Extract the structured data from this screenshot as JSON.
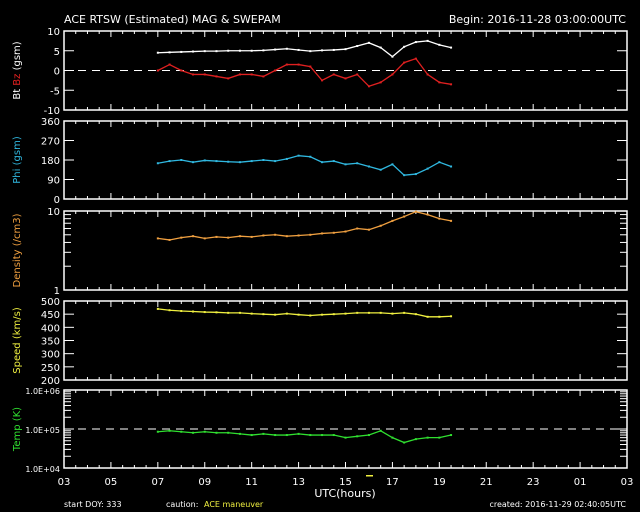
{
  "header": {
    "title": "ACE RTSW (Estimated) MAG & SWEPAM",
    "begin": "Begin: 2016-11-28 03:00:00UTC"
  },
  "footer": {
    "start_doy": "start DOY: 333",
    "caution_label": "caution:",
    "caution_text": "ACE maneuver",
    "created": "created: 2016-11-29 02:40:05UTC"
  },
  "colors": {
    "bt": "#ffffff",
    "bz": "#e02020",
    "phi": "#30b8e0",
    "density": "#f0a040",
    "speed": "#f0f040",
    "temp": "#30e030",
    "caution": "#f0f040"
  },
  "chart_data": {
    "type": "scatter",
    "xlabel": "UTC(hours)",
    "x_ticks": [
      "03",
      "05",
      "07",
      "09",
      "11",
      "13",
      "15",
      "17",
      "19",
      "21",
      "23",
      "01",
      "03"
    ],
    "x_range_hours": [
      0,
      24
    ],
    "x_hours_from_start": [
      4.0,
      4.5,
      5.0,
      5.5,
      6.0,
      6.5,
      7.0,
      7.5,
      8.0,
      8.5,
      9.0,
      9.5,
      10.0,
      10.5,
      11.0,
      11.5,
      12.0,
      12.5,
      13.0,
      13.5,
      14.0,
      14.5,
      15.0,
      15.5,
      16.0,
      16.5
    ],
    "panels": [
      {
        "id": "mag",
        "ylabel_parts": [
          "Bt",
          "Bz",
          "(gsm)"
        ],
        "scale": "linear",
        "ylim": [
          -10,
          10
        ],
        "y_ticks": [
          "-10",
          "-5",
          "0",
          "5",
          "10"
        ],
        "y_tick_values": [
          -10,
          -5,
          0,
          5,
          10
        ],
        "dashed_at": 0,
        "series": [
          {
            "name": "Bt",
            "color_key": "bt",
            "values": [
              4.5,
              4.6,
              4.7,
              4.8,
              4.9,
              4.9,
              5.0,
              5.0,
              5.0,
              5.1,
              5.3,
              5.5,
              5.2,
              4.9,
              5.1,
              5.2,
              5.4,
              6.2,
              7.0,
              5.8,
              3.5,
              6.0,
              7.2,
              7.5,
              6.5,
              5.8
            ]
          },
          {
            "name": "Bz",
            "color_key": "bz",
            "values": [
              0,
              1.5,
              0,
              -1,
              -1,
              -1.5,
              -2,
              -1,
              -1,
              -1.5,
              0,
              1.5,
              1.5,
              1,
              -2.5,
              -1,
              -2,
              -1,
              -4,
              -3,
              -1,
              2,
              3,
              -1,
              -3,
              -3.5
            ]
          }
        ]
      },
      {
        "id": "phi",
        "ylabel_parts": [
          "Phi",
          "(gsm)"
        ],
        "scale": "linear",
        "ylim": [
          0,
          360
        ],
        "y_ticks": [
          "0",
          "90",
          "180",
          "270",
          "360"
        ],
        "y_tick_values": [
          0,
          90,
          180,
          270,
          360
        ],
        "series": [
          {
            "name": "Phi",
            "color_key": "phi",
            "values": [
              165,
              175,
              180,
              170,
              178,
              175,
              172,
              170,
              175,
              180,
              175,
              185,
              200,
              195,
              170,
              175,
              160,
              165,
              150,
              135,
              160,
              110,
              115,
              140,
              170,
              150
            ]
          }
        ]
      },
      {
        "id": "density",
        "ylabel_parts": [
          "Density",
          "(/cm3)"
        ],
        "scale": "log",
        "ylim": [
          1,
          10
        ],
        "y_ticks": [
          "1",
          "10"
        ],
        "y_tick_values": [
          1,
          10
        ],
        "series": [
          {
            "name": "Density",
            "color_key": "density",
            "values": [
              4.5,
              4.3,
              4.6,
              4.8,
              4.5,
              4.7,
              4.6,
              4.8,
              4.7,
              4.9,
              5.0,
              4.8,
              4.9,
              5.0,
              5.2,
              5.3,
              5.5,
              6.0,
              5.8,
              6.5,
              7.5,
              8.5,
              9.8,
              9.0,
              8.0,
              7.5
            ]
          }
        ]
      },
      {
        "id": "speed",
        "ylabel_parts": [
          "Speed",
          "(km/s)"
        ],
        "scale": "linear",
        "ylim": [
          200,
          500
        ],
        "y_ticks": [
          "200",
          "250",
          "300",
          "350",
          "400",
          "450",
          "500"
        ],
        "y_tick_values": [
          200,
          250,
          300,
          350,
          400,
          450,
          500
        ],
        "series": [
          {
            "name": "Speed",
            "color_key": "speed",
            "values": [
              470,
              465,
              462,
              460,
              458,
              457,
              455,
              455,
              452,
              450,
              448,
              452,
              448,
              445,
              448,
              450,
              452,
              455,
              455,
              455,
              452,
              455,
              450,
              440,
              440,
              442
            ]
          }
        ]
      },
      {
        "id": "temp",
        "ylabel_parts": [
          "Temp",
          "(K)"
        ],
        "scale": "log",
        "ylim": [
          10000,
          1000000
        ],
        "y_ticks": [
          "1.0E+04",
          "1.0E+05",
          "1.0E+06"
        ],
        "y_tick_values": [
          10000,
          100000,
          1000000
        ],
        "dashed_at": 100000,
        "series": [
          {
            "name": "Temp",
            "color_key": "temp",
            "values": [
              85000,
              90000,
              85000,
              80000,
              85000,
              80000,
              80000,
              75000,
              70000,
              75000,
              70000,
              70000,
              75000,
              70000,
              70000,
              70000,
              60000,
              65000,
              70000,
              90000,
              60000,
              45000,
              55000,
              60000,
              60000,
              70000
            ]
          }
        ]
      }
    ]
  }
}
